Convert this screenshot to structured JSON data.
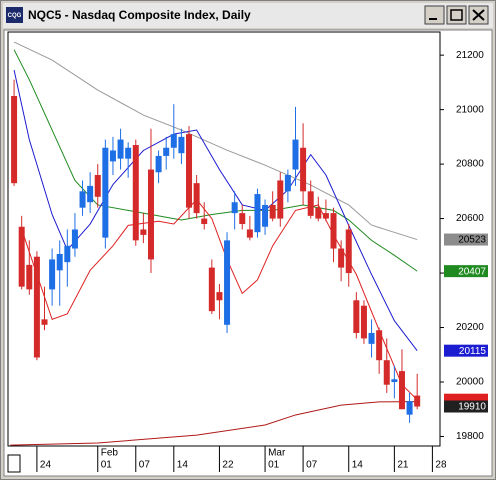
{
  "window": {
    "icon": "CQG",
    "title": "NQC5 - Nasdaq Composite Index, Daily"
  },
  "chart_data": {
    "type": "candlestick",
    "up_color": "#1e6ee6",
    "down_color": "#d42a2a",
    "open": [
      21050,
      20570,
      20430,
      20460,
      20230,
      20340,
      20410,
      20440,
      20490,
      20640,
      20660,
      20760,
      20530,
      20810,
      20820,
      20820,
      20870,
      20560,
      20780,
      20770,
      20830,
      20860,
      20840,
      20910,
      20730,
      20600,
      20420,
      20330,
      20210,
      20620,
      20620,
      20560,
      20550,
      20570,
      20650,
      20740,
      20700,
      20780,
      20860,
      20700,
      20640,
      20620,
      20620,
      20490,
      20560,
      20300,
      20280,
      20140,
      20190,
      20080,
      20000,
      20040,
      19880,
      19950
    ],
    "high": [
      21110,
      20610,
      20520,
      20480,
      20350,
      20490,
      20520,
      20560,
      20620,
      20740,
      20770,
      20800,
      20890,
      20900,
      20930,
      20880,
      20890,
      20620,
      20930,
      20850,
      20900,
      21020,
      20930,
      20940,
      20760,
      20660,
      20450,
      20360,
      20550,
      20700,
      20650,
      20610,
      20710,
      20670,
      20700,
      20770,
      20780,
      21010,
      20950,
      20740,
      20680,
      20670,
      20640,
      20520,
      20580,
      20330,
      20300,
      20230,
      20200,
      20160,
      20060,
      20120,
      19960,
      20030
    ],
    "low": [
      20720,
      20340,
      20320,
      20080,
      20190,
      20280,
      20280,
      20350,
      20460,
      20610,
      20620,
      20640,
      20490,
      20760,
      20780,
      20750,
      20500,
      20510,
      20400,
      20730,
      20780,
      20820,
      20800,
      20600,
      20600,
      20560,
      20250,
      20230,
      20180,
      20560,
      20560,
      20520,
      20530,
      20540,
      20590,
      20570,
      20660,
      20720,
      20650,
      20600,
      20590,
      20590,
      20440,
      20370,
      20350,
      20160,
      20140,
      20090,
      20030,
      19960,
      19940,
      19900,
      19850,
      19900
    ],
    "close": [
      20730,
      20350,
      20340,
      20090,
      20210,
      20450,
      20470,
      20500,
      20560,
      20700,
      20720,
      20680,
      20860,
      20850,
      20890,
      20860,
      20520,
      20540,
      20450,
      20830,
      20860,
      20910,
      20900,
      20640,
      20620,
      20580,
      20260,
      20300,
      20520,
      20660,
      20580,
      20530,
      20690,
      20650,
      20600,
      20600,
      20760,
      20890,
      20700,
      20610,
      20600,
      20600,
      20490,
      20420,
      20400,
      20180,
      20160,
      20180,
      20080,
      19990,
      20010,
      19900,
      19930,
      19910
    ],
    "series": [
      {
        "color": "#9a9a9a",
        "x": [
          0,
          5,
          11,
          17,
          22,
          28,
          33,
          39,
          44,
          47,
          53
        ],
        "values": [
          21248,
          21182,
          21072,
          20980,
          20925,
          20851,
          20796,
          20723,
          20650,
          20576,
          20523
        ]
      },
      {
        "color": "#1f8a1f",
        "x": [
          0,
          2,
          5,
          8,
          11,
          15,
          18,
          22,
          26,
          30,
          34,
          38,
          42,
          44,
          47,
          50,
          53
        ],
        "values": [
          21220,
          21110,
          20925,
          20740,
          20650,
          20630,
          20615,
          20595,
          20615,
          20630,
          20630,
          20650,
          20630,
          20595,
          20520,
          20465,
          20407
        ]
      },
      {
        "color": "#1c1cd0",
        "x": [
          0,
          2,
          5,
          7,
          10,
          13,
          17,
          21,
          24,
          27,
          30,
          33,
          36,
          39,
          41,
          44,
          47,
          50,
          53
        ],
        "values": [
          21145,
          20890,
          20615,
          20485,
          20580,
          20725,
          20850,
          20910,
          20925,
          20780,
          20650,
          20630,
          20705,
          20835,
          20760,
          20575,
          20395,
          20225,
          20115
        ]
      },
      {
        "color": "#e02020",
        "x": [
          1,
          5,
          7,
          10,
          13,
          15,
          19,
          21,
          24,
          26,
          28,
          30,
          32,
          34,
          37,
          40,
          42,
          45,
          48,
          51,
          53
        ],
        "values": [
          20560,
          20230,
          20250,
          20410,
          20500,
          20575,
          20590,
          20580,
          20670,
          20600,
          20450,
          20325,
          20375,
          20500,
          20630,
          20650,
          20540,
          20395,
          20190,
          19990,
          19935
        ]
      },
      {
        "color": "#b01818",
        "x": [
          -0.5,
          11,
          24,
          33,
          37,
          43,
          48,
          53
        ],
        "values": [
          19768,
          19776,
          19805,
          19842,
          19879,
          19915,
          19927,
          19928
        ]
      }
    ],
    "xlim": [
      -0.8,
      56
    ],
    "ylim": [
      19765,
      21285
    ],
    "yticks": [
      19800,
      20000,
      20200,
      20400,
      20600,
      20800,
      21000,
      21200
    ],
    "xticks": [
      {
        "value": 3,
        "label": "24"
      },
      {
        "value": 11,
        "label": "01"
      },
      {
        "value": 16,
        "label": "07"
      },
      {
        "value": 21,
        "label": "14"
      },
      {
        "value": 27,
        "label": "22"
      },
      {
        "value": 33,
        "label": "01"
      },
      {
        "value": 38,
        "label": "07"
      },
      {
        "value": 44,
        "label": "14"
      },
      {
        "value": 50,
        "label": "21"
      },
      {
        "value": 55,
        "label": "28"
      }
    ],
    "month_labels": [
      {
        "value": 11,
        "label": "Feb"
      },
      {
        "value": 33,
        "label": "Mar"
      }
    ]
  }
}
